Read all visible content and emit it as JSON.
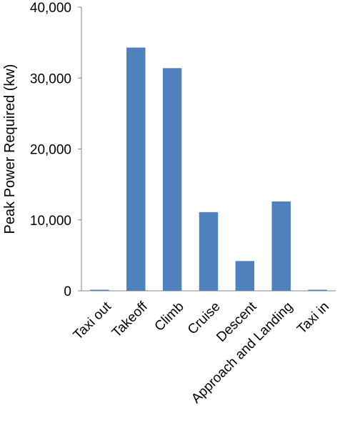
{
  "chart_data": {
    "type": "bar",
    "title": "",
    "xlabel": "",
    "ylabel": "Peak Power Required (kw)",
    "categories": [
      "Taxi out",
      "Takeoff",
      "Climb",
      "Cruise",
      "Descent",
      "Approach and Landing",
      "Taxi in"
    ],
    "values": [
      150,
      34300,
      31400,
      11100,
      4200,
      12600,
      150
    ],
    "ylim": [
      0,
      40000
    ],
    "yticks": [
      0,
      10000,
      20000,
      30000,
      40000
    ],
    "ytick_labels": [
      "0",
      "10,000",
      "20,000",
      "30,000",
      "40,000"
    ],
    "grid": false,
    "legend": "none",
    "bar_color": "#4F81BD"
  }
}
